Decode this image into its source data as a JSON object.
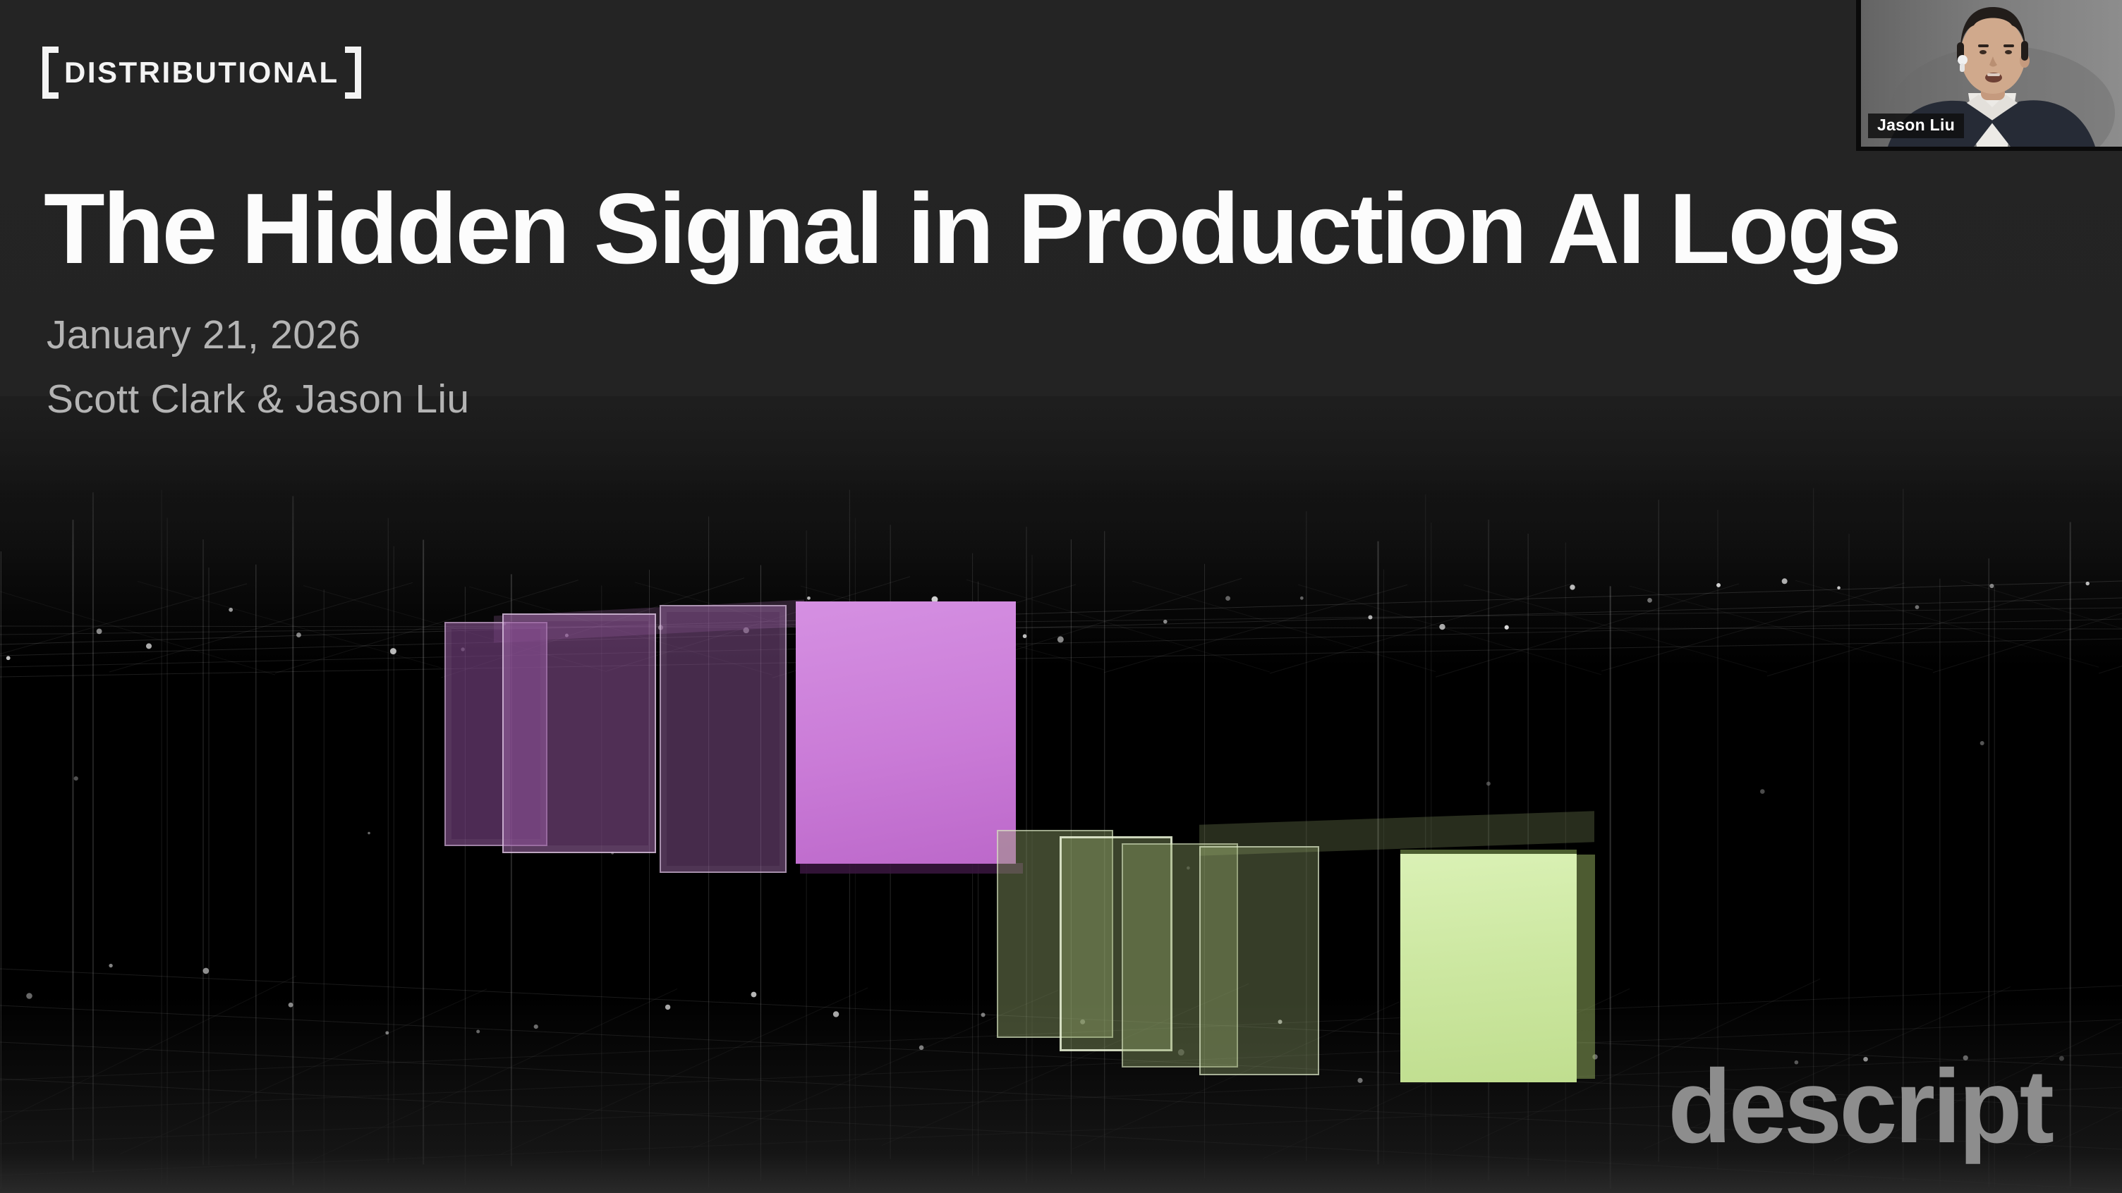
{
  "header": {
    "logo_text": "DISTRIBUTIONAL",
    "title": "The Hidden Signal in Production AI Logs",
    "date_line": "January 21, 2026",
    "authors_line": "Scott Clark & Jason Liu"
  },
  "webcam": {
    "participant_name": "Jason Liu"
  },
  "watermark": {
    "text": "descript"
  },
  "scene": {
    "kind": "3d-wireframe-grid-with-panel-stacks",
    "purple_panels": 4,
    "green_panels": 5,
    "colors": {
      "background_top": "#242424",
      "background_bottom": "#000000",
      "grid_line": "#ffffff",
      "purple_bright": "#ca7bd7",
      "purple_translucent": "#8a5499",
      "green_bright": "#cde8a2",
      "green_translucent": "#93a86b",
      "watermark_gray": "#8d8d8d"
    }
  }
}
